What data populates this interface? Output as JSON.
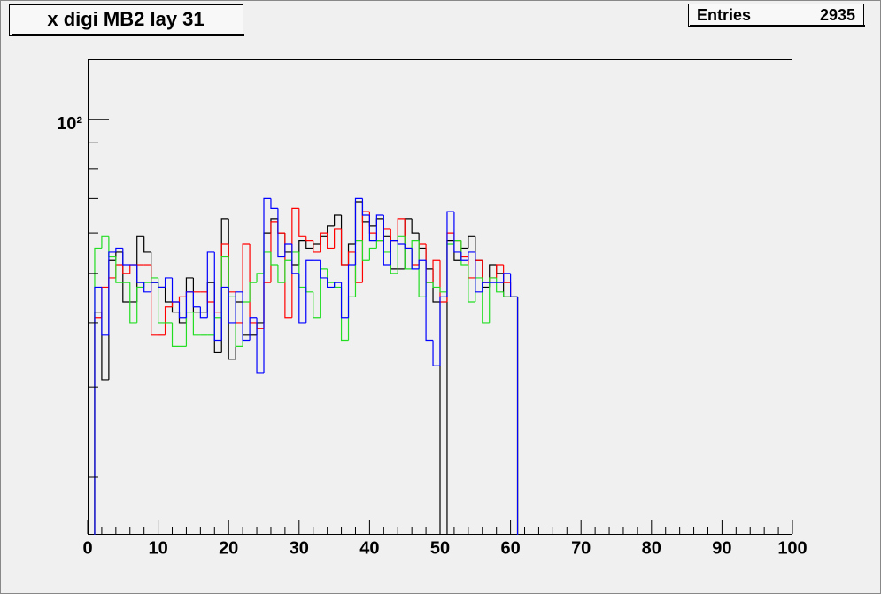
{
  "chart_data": {
    "type": "histogram",
    "title": "x digi MB2 lay 31",
    "stats": {
      "label": "Entries",
      "value": 2935
    },
    "log_y": true,
    "xlim": [
      0,
      100
    ],
    "xticks": [
      0,
      10,
      20,
      30,
      40,
      50,
      60,
      70,
      80,
      90,
      100
    ],
    "ylim": [
      15.5,
      131
    ],
    "yticks": [
      {
        "value": 100,
        "label": "10²"
      }
    ],
    "yminor_ticks": [
      20,
      30,
      40,
      50,
      60,
      70,
      80,
      90
    ],
    "bins": [
      0,
      1,
      2,
      3,
      4,
      5,
      6,
      7,
      8,
      9,
      10,
      11,
      12,
      13,
      14,
      15,
      16,
      17,
      18,
      19,
      20,
      21,
      22,
      23,
      24,
      25,
      26,
      27,
      28,
      29,
      30,
      31,
      32,
      33,
      34,
      35,
      36,
      37,
      38,
      39,
      40,
      41,
      42,
      43,
      44,
      45,
      46,
      47,
      48,
      49,
      50,
      51,
      52,
      53,
      54,
      55,
      56,
      57,
      58,
      59,
      60,
      61,
      62,
      63,
      64,
      65,
      66,
      67,
      68,
      69,
      70,
      71,
      72,
      73,
      74,
      75,
      76,
      77,
      78,
      79,
      80,
      81,
      82,
      83,
      84,
      85,
      86,
      87,
      88,
      89,
      90,
      91,
      92,
      93,
      94,
      95,
      96,
      97,
      98,
      99,
      100
    ],
    "series": [
      {
        "color": "#000000",
        "values": [
          0,
          42,
          31,
          53,
          55,
          44,
          44,
          59,
          55,
          48,
          47,
          44,
          42,
          40,
          49,
          42,
          42,
          48,
          35,
          64,
          34,
          44,
          38,
          38,
          40,
          60,
          64,
          60,
          55,
          52,
          58,
          56,
          57,
          59,
          62,
          65,
          52,
          57,
          69,
          63,
          62,
          64,
          59,
          51,
          51,
          64,
          60,
          56,
          51,
          44,
          0,
          58,
          53,
          56,
          59,
          53,
          47,
          52,
          50,
          45,
          45,
          0,
          0,
          0,
          0,
          0,
          0,
          0,
          0,
          0,
          0,
          0,
          0,
          0,
          0,
          0,
          0,
          0,
          0,
          0,
          0,
          0,
          0,
          0,
          0,
          0,
          0,
          0,
          0,
          0,
          0,
          0,
          0,
          0,
          0,
          0,
          0,
          0,
          0,
          0
        ]
      },
      {
        "color": "#ff0000",
        "values": [
          0,
          41,
          47,
          49,
          52,
          50,
          52,
          52,
          52,
          38,
          38,
          43,
          44,
          45,
          46,
          46,
          46,
          44,
          42,
          57,
          46,
          40,
          57,
          40,
          39,
          48,
          63,
          60,
          41,
          67,
          59,
          58,
          55,
          60,
          56,
          61,
          52,
          55,
          48,
          66,
          60,
          58,
          61,
          58,
          64,
          56,
          52,
          57,
          48,
          53,
          44,
          60,
          58,
          54,
          49,
          53,
          48,
          49,
          52,
          48,
          45,
          0,
          0,
          0,
          0,
          0,
          0,
          0,
          0,
          0,
          0,
          0,
          0,
          0,
          0,
          0,
          0,
          0,
          0,
          0,
          0,
          0,
          0,
          0,
          0,
          0,
          0,
          0,
          0,
          0,
          0,
          0,
          0,
          0,
          0,
          0,
          0,
          0,
          0,
          0
        ]
      },
      {
        "color": "#22dd22",
        "values": [
          0,
          56,
          59,
          54,
          48,
          48,
          40,
          47,
          48,
          49,
          40,
          40,
          36,
          36,
          42,
          38,
          38,
          38,
          41,
          54,
          45,
          36,
          44,
          48,
          50,
          55,
          52,
          48,
          53,
          55,
          47,
          46,
          41,
          51,
          48,
          47,
          37,
          45,
          58,
          53,
          56,
          58,
          55,
          50,
          59,
          51,
          58,
          45,
          48,
          47,
          46,
          57,
          58,
          52,
          44,
          49,
          40,
          49,
          46,
          45,
          45,
          0,
          0,
          0,
          0,
          0,
          0,
          0,
          0,
          0,
          0,
          0,
          0,
          0,
          0,
          0,
          0,
          0,
          0,
          0,
          0,
          0,
          0,
          0,
          0,
          0,
          0,
          0,
          0,
          0,
          0,
          0,
          0,
          0,
          0,
          0,
          0,
          0,
          0,
          0
        ]
      },
      {
        "color": "#0000ff",
        "values": [
          0,
          47,
          38,
          55,
          56,
          52,
          52,
          48,
          46,
          48,
          47,
          49,
          44,
          41,
          46,
          43,
          41,
          55,
          37,
          47,
          40,
          46,
          37,
          41,
          32,
          70,
          67,
          54,
          57,
          50,
          40,
          53,
          53,
          49,
          47,
          48,
          41,
          52,
          70,
          65,
          58,
          65,
          52,
          58,
          57,
          56,
          51,
          53,
          37,
          33,
          45,
          66,
          55,
          53,
          55,
          46,
          48,
          48,
          48,
          50,
          45,
          0,
          0,
          0,
          0,
          0,
          0,
          0,
          0,
          0,
          0,
          0,
          0,
          0,
          0,
          0,
          0,
          0,
          0,
          0,
          0,
          0,
          0,
          0,
          0,
          0,
          0,
          0,
          0,
          0,
          0,
          0,
          0,
          0,
          0,
          0,
          0,
          0,
          0,
          0
        ]
      }
    ]
  }
}
